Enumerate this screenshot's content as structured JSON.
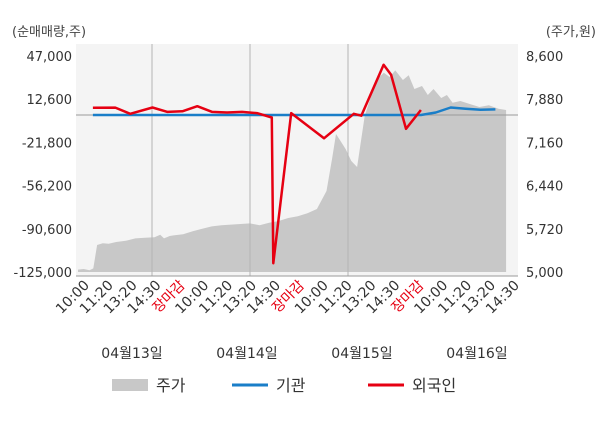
{
  "chart_data": {
    "type": "line",
    "left_unit": "(순매매량,주)",
    "right_unit": "(주가,원)",
    "left_ticks": [
      "47,000",
      "12,600",
      "-21,800",
      "-56,200",
      "-90,600",
      "-125,000"
    ],
    "right_ticks": [
      "8,600",
      "7,880",
      "7,160",
      "6,440",
      "5,720",
      "5,000"
    ],
    "left_range": [
      -125000,
      47000
    ],
    "right_range": [
      5000,
      8600
    ],
    "x_ticks": [
      {
        "label": "10:00",
        "close": false
      },
      {
        "label": "11:20",
        "close": false
      },
      {
        "label": "13:20",
        "close": false
      },
      {
        "label": "14:30",
        "close": false
      },
      {
        "label": "장마감",
        "close": true
      },
      {
        "label": "10:00",
        "close": false
      },
      {
        "label": "11:20",
        "close": false
      },
      {
        "label": "13:20",
        "close": false
      },
      {
        "label": "14:30",
        "close": false
      },
      {
        "label": "장마감",
        "close": true
      },
      {
        "label": "10:00",
        "close": false
      },
      {
        "label": "11:20",
        "close": false
      },
      {
        "label": "13:20",
        "close": false
      },
      {
        "label": "14:30",
        "close": false
      },
      {
        "label": "장마감",
        "close": true
      },
      {
        "label": "10:00",
        "close": false
      },
      {
        "label": "11:20",
        "close": false
      },
      {
        "label": "13:20",
        "close": false
      },
      {
        "label": "14:30",
        "close": false
      }
    ],
    "dates": [
      "04월13일",
      "04월14일",
      "04월15일",
      "04월16일"
    ],
    "series": [
      {
        "name": "주가",
        "axis": "right",
        "color": "#c8c8c8",
        "values": [
          [
            0,
            5040
          ],
          [
            0.3,
            5050
          ],
          [
            0.6,
            5030
          ],
          [
            0.8,
            5060
          ],
          [
            1.0,
            5450
          ],
          [
            1.3,
            5480
          ],
          [
            1.6,
            5470
          ],
          [
            2.0,
            5500
          ],
          [
            2.5,
            5520
          ],
          [
            3.0,
            5560
          ],
          [
            3.5,
            5570
          ],
          [
            4.0,
            5580
          ],
          [
            4.3,
            5620
          ],
          [
            4.5,
            5560
          ],
          [
            4.8,
            5600
          ],
          [
            5.0,
            5610
          ],
          [
            5.5,
            5630
          ],
          [
            6.0,
            5680
          ],
          [
            6.5,
            5720
          ],
          [
            7.0,
            5760
          ],
          [
            7.5,
            5780
          ],
          [
            8.0,
            5790
          ],
          [
            8.5,
            5800
          ],
          [
            9.0,
            5810
          ],
          [
            9.5,
            5780
          ],
          [
            10.0,
            5820
          ],
          [
            10.5,
            5850
          ],
          [
            11.0,
            5900
          ],
          [
            11.5,
            5930
          ],
          [
            12.0,
            5980
          ],
          [
            12.5,
            6050
          ],
          [
            13.0,
            6350
          ],
          [
            13.3,
            6900
          ],
          [
            13.5,
            7300
          ],
          [
            13.7,
            7200
          ],
          [
            14.0,
            7050
          ],
          [
            14.3,
            6850
          ],
          [
            14.6,
            6750
          ],
          [
            15.0,
            7600
          ],
          [
            15.3,
            7900
          ],
          [
            15.6,
            8200
          ],
          [
            16.0,
            8320
          ],
          [
            16.3,
            8250
          ],
          [
            16.6,
            8360
          ],
          [
            17.0,
            8200
          ],
          [
            17.3,
            8280
          ],
          [
            17.6,
            8050
          ],
          [
            18.0,
            8100
          ],
          [
            18.3,
            7950
          ],
          [
            18.6,
            8050
          ],
          [
            19.0,
            7900
          ],
          [
            19.3,
            7950
          ],
          [
            19.6,
            7820
          ],
          [
            20.0,
            7850
          ],
          [
            20.5,
            7800
          ],
          [
            21.0,
            7750
          ],
          [
            21.5,
            7780
          ],
          [
            22.0,
            7720
          ],
          [
            22.4,
            7700
          ]
        ]
      },
      {
        "name": "기관",
        "axis": "left",
        "color": "#1a7ec8",
        "values": [
          [
            1,
            0
          ],
          [
            3,
            0
          ],
          [
            5,
            0
          ],
          [
            7,
            0
          ],
          [
            9,
            0
          ],
          [
            11,
            0
          ],
          [
            13,
            0
          ],
          [
            15,
            0
          ],
          [
            17,
            0
          ],
          [
            19,
            0
          ],
          [
            21,
            0
          ],
          [
            23,
            0
          ],
          [
            24,
            2000
          ],
          [
            25,
            6000
          ],
          [
            26,
            5000
          ],
          [
            27,
            4200
          ],
          [
            28,
            4500
          ]
        ]
      },
      {
        "name": "외국인",
        "axis": "left",
        "color": "#e60012",
        "values": [
          [
            1,
            5800
          ],
          [
            2.5,
            5900
          ],
          [
            3.5,
            1000
          ],
          [
            5,
            6000
          ],
          [
            6,
            2500
          ],
          [
            7,
            3000
          ],
          [
            8,
            7000
          ],
          [
            9,
            2500
          ],
          [
            10,
            2000
          ],
          [
            11,
            2500
          ],
          [
            12,
            1500
          ],
          [
            13,
            -2000
          ],
          [
            13.1,
            -118000
          ],
          [
            14.3,
            1500
          ],
          [
            16.5,
            -18500
          ],
          [
            18.5,
            1000
          ],
          [
            19,
            -500
          ],
          [
            20.5,
            40000
          ],
          [
            21,
            32000
          ],
          [
            22,
            -11000
          ],
          [
            23,
            4000
          ]
        ]
      }
    ],
    "legend": [
      {
        "label": "주가",
        "color": "#c8c8c8",
        "kind": "area"
      },
      {
        "label": "기관",
        "color": "#1a7ec8",
        "kind": "line"
      },
      {
        "label": "외국인",
        "color": "#e60012",
        "kind": "line"
      }
    ]
  }
}
